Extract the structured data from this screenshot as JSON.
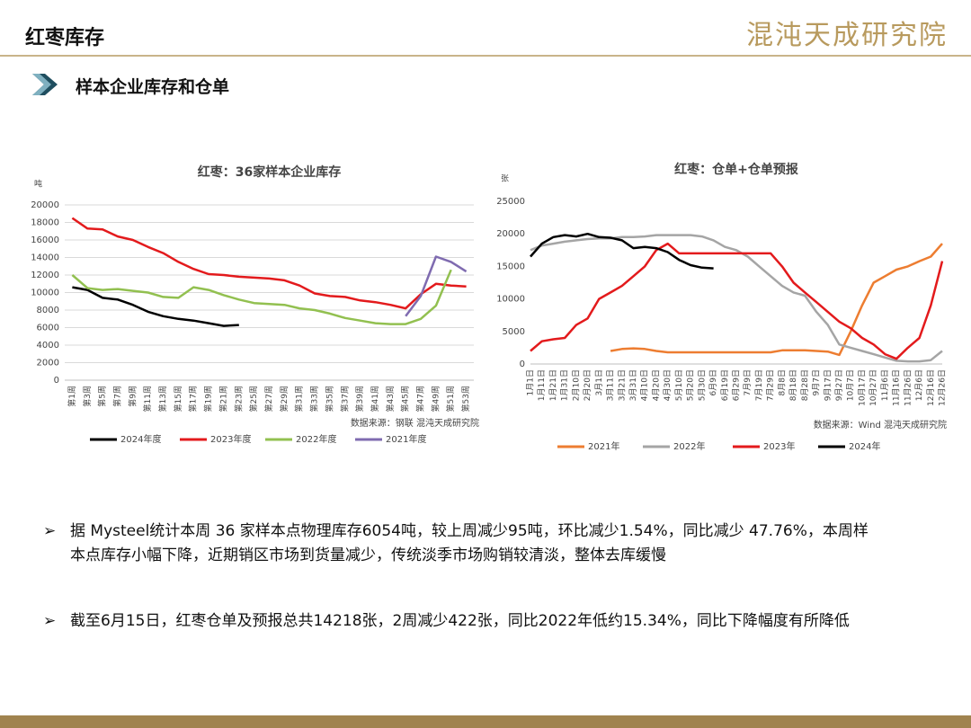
{
  "header": {
    "title": "红枣库存",
    "section": "样本企业库存和仓单",
    "logo": "混沌天成研究院"
  },
  "chart_data": [
    {
      "type": "line",
      "title": "红枣：36家样本企业库存",
      "y_unit": "吨",
      "source": "数据来源：钢联  混沌天成研究院",
      "categories": [
        "第1周",
        "第3周",
        "第5周",
        "第7周",
        "第9周",
        "第11周",
        "第13周",
        "第15周",
        "第17周",
        "第19周",
        "第21周",
        "第23周",
        "第25周",
        "第27周",
        "第29周",
        "第31周",
        "第33周",
        "第35周",
        "第37周",
        "第39周",
        "第41周",
        "第43周",
        "第45周",
        "第47周",
        "第49周",
        "第51周",
        "第53周"
      ],
      "ylim": [
        0,
        20000
      ],
      "yticks": [
        0,
        2000,
        4000,
        6000,
        8000,
        10000,
        12000,
        14000,
        16000,
        18000,
        20000
      ],
      "grid": true,
      "series": [
        {
          "name": "2024年度",
          "color": "#000000",
          "values": [
            10600,
            10300,
            9400,
            9200,
            8600,
            7800,
            7300,
            7000,
            6800,
            6500,
            6200,
            6300,
            null,
            null,
            null,
            null,
            null,
            null,
            null,
            null,
            null,
            null,
            null,
            null,
            null,
            null,
            null
          ]
        },
        {
          "name": "2023年度",
          "color": "#e31a1c",
          "values": [
            18500,
            17300,
            17200,
            16400,
            16000,
            15200,
            14500,
            13500,
            12700,
            12100,
            12000,
            11800,
            11700,
            11600,
            11400,
            10800,
            9900,
            9600,
            9500,
            9100,
            8900,
            8600,
            8200,
            9800,
            11000,
            10800,
            10700
          ]
        },
        {
          "name": "2022年度",
          "color": "#92c050",
          "values": [
            12000,
            10500,
            10300,
            10400,
            10200,
            10000,
            9500,
            9400,
            10600,
            10300,
            9700,
            9200,
            8800,
            8700,
            8600,
            8200,
            8000,
            7600,
            7100,
            6800,
            6500,
            6400,
            6400,
            7000,
            8500,
            12600,
            null
          ]
        },
        {
          "name": "2021年度",
          "color": "#7f6bb0",
          "values": [
            null,
            null,
            null,
            null,
            null,
            null,
            null,
            null,
            null,
            null,
            null,
            null,
            null,
            null,
            null,
            null,
            null,
            null,
            null,
            null,
            null,
            null,
            7300,
            9600,
            14100,
            13500,
            12400
          ]
        }
      ]
    },
    {
      "type": "line",
      "title": "红枣：仓单+仓单预报",
      "y_unit": "张",
      "source": "数据来源：Wind 混沌天成研究院",
      "categories": [
        "1月1日",
        "1月11日",
        "1月21日",
        "1月31日",
        "2月10日",
        "2月20日",
        "3月1日",
        "3月11日",
        "3月21日",
        "3月31日",
        "4月10日",
        "4月20日",
        "4月30日",
        "5月10日",
        "5月20日",
        "5月30日",
        "6月9日",
        "6月19日",
        "6月29日",
        "7月9日",
        "7月19日",
        "7月29日",
        "8月8日",
        "8月18日",
        "8月28日",
        "9月7日",
        "9月17日",
        "9月27日",
        "10月7日",
        "10月17日",
        "10月27日",
        "11月6日",
        "11月16日",
        "11月26日",
        "12月6日",
        "12月16日",
        "12月26日"
      ],
      "ylim": [
        0,
        25000
      ],
      "yticks": [
        0,
        5000,
        10000,
        15000,
        20000,
        25000
      ],
      "grid": false,
      "series": [
        {
          "name": "2021年",
          "color": "#ed7d31",
          "values": [
            null,
            null,
            null,
            null,
            null,
            null,
            null,
            2000,
            2300,
            2400,
            2300,
            2000,
            1800,
            1800,
            1800,
            1800,
            1800,
            1800,
            1800,
            1800,
            1800,
            1800,
            2100,
            2100,
            2100,
            2000,
            1900,
            1400,
            5000,
            9000,
            12500,
            13500,
            14500,
            15000,
            15800,
            16500,
            18500
          ]
        },
        {
          "name": "2022年",
          "color": "#a5a5a5",
          "values": [
            17500,
            18200,
            18500,
            18800,
            19000,
            19200,
            19300,
            19300,
            19500,
            19500,
            19600,
            19800,
            19800,
            19800,
            19800,
            19600,
            19000,
            18000,
            17500,
            16500,
            15000,
            13500,
            12000,
            11000,
            10500,
            8000,
            6000,
            3000,
            2500,
            2000,
            1500,
            1000,
            500,
            400,
            400,
            600,
            2000
          ]
        },
        {
          "name": "2023年",
          "color": "#e31a1c",
          "values": [
            2000,
            3500,
            3800,
            4000,
            6000,
            7000,
            10000,
            11000,
            12000,
            13500,
            15000,
            17500,
            18500,
            17000,
            17000,
            17000,
            17000,
            17000,
            17000,
            17000,
            17000,
            17000,
            15000,
            12500,
            11000,
            9500,
            8000,
            6500,
            5500,
            4000,
            3000,
            1500,
            800,
            2500,
            4000,
            9000,
            15800
          ]
        },
        {
          "name": "2024年",
          "color": "#000000",
          "values": [
            16500,
            18500,
            19500,
            19800,
            19600,
            20000,
            19500,
            19400,
            19000,
            17800,
            18000,
            17800,
            17200,
            16000,
            15200,
            14800,
            14700,
            null,
            null,
            null,
            null,
            null,
            null,
            null,
            null,
            null,
            null,
            null,
            null,
            null,
            null,
            null,
            null,
            null,
            null,
            null,
            null
          ]
        }
      ]
    }
  ],
  "bullets": [
    "据 Mysteel统计本周 36 家样本点物理库存6054吨，较上周减少95吨，环比减少1.54%，同比减少 47.76%，本周样本点库存小幅下降，近期销区市场到货量减少，传统淡季市场购销较清淡，整体去库缓慢",
    "截至6月15日，红枣仓单及预报总共14218张，2周减少422张，同比2022年低约15.34%，同比下降幅度有所降低"
  ]
}
